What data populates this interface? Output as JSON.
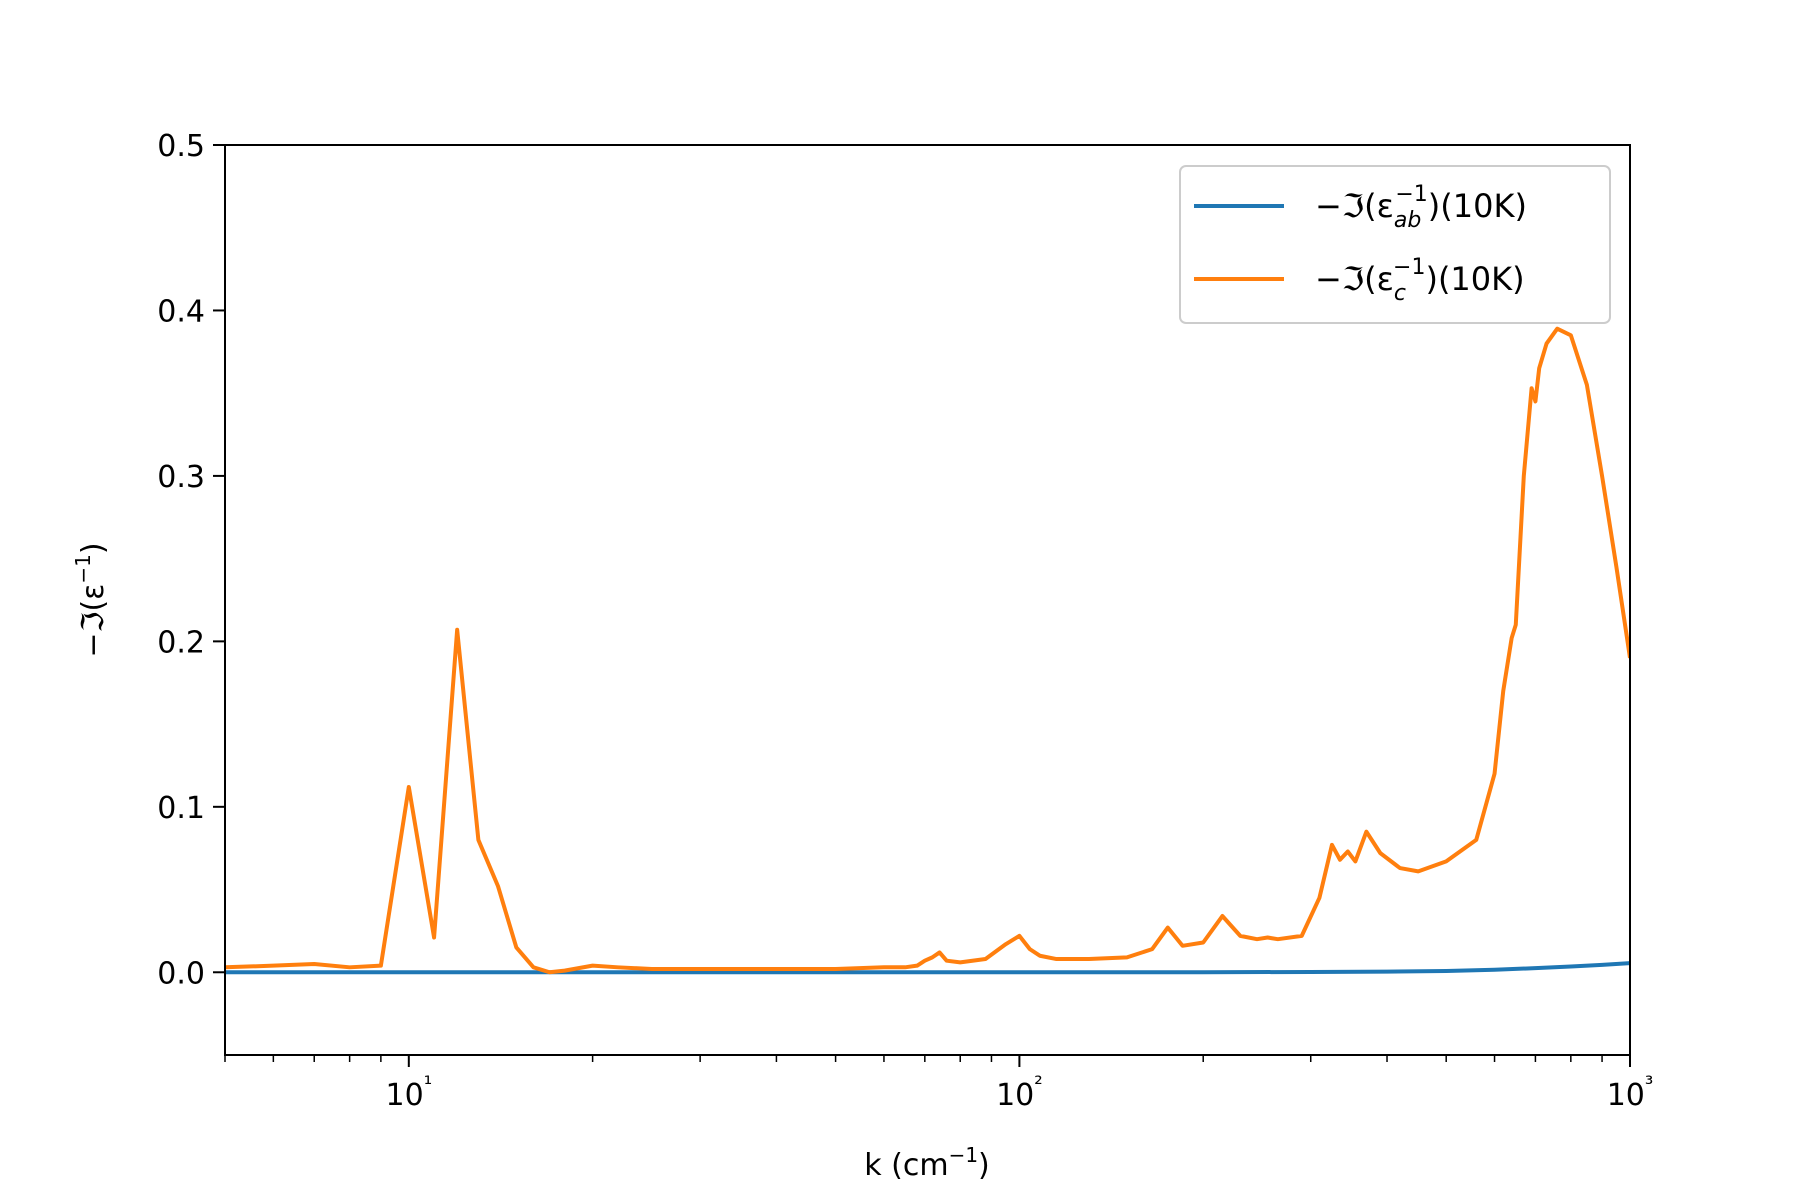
{
  "chart_data": {
    "type": "line",
    "title": "",
    "xlabel": "k (cm⁻¹)",
    "ylabel": "−ℑ(ε⁻¹)",
    "x_scale": "log",
    "xlim": [
      5,
      1000
    ],
    "ylim": [
      -0.05,
      0.5
    ],
    "x_ticks": [
      {
        "value": 10,
        "label": "10¹"
      },
      {
        "value": 100,
        "label": "10²"
      },
      {
        "value": 1000,
        "label": "10³"
      }
    ],
    "y_ticks": [
      {
        "value": 0.0,
        "label": "0.0"
      },
      {
        "value": 0.1,
        "label": "0.1"
      },
      {
        "value": 0.2,
        "label": "0.2"
      },
      {
        "value": 0.3,
        "label": "0.3"
      },
      {
        "value": 0.4,
        "label": "0.4"
      },
      {
        "value": 0.5,
        "label": "0.5"
      }
    ],
    "grid": false,
    "legend_position": "top-right",
    "series": [
      {
        "name": "−ℑ(ε_ab⁻¹)(10K)",
        "legend": {
          "prefix": "−ℑ(ε",
          "sub": "ab",
          "sup": "−1",
          "suffix": ")(10K)"
        },
        "color": "#1f77b4",
        "points": [
          [
            5,
            0.0
          ],
          [
            10,
            0.0
          ],
          [
            20,
            0.0
          ],
          [
            50,
            0.0
          ],
          [
            100,
            0.0
          ],
          [
            200,
            0.0
          ],
          [
            300,
            0.0002
          ],
          [
            400,
            0.0004
          ],
          [
            500,
            0.0008
          ],
          [
            600,
            0.0015
          ],
          [
            700,
            0.0025
          ],
          [
            800,
            0.0035
          ],
          [
            900,
            0.0045
          ],
          [
            1000,
            0.0055
          ]
        ]
      },
      {
        "name": "−ℑ(ε_c⁻¹)(10K)",
        "legend": {
          "prefix": "−ℑ(ε",
          "sub": "c",
          "sup": "−1",
          "suffix": ")(10K)"
        },
        "color": "#ff7f0e",
        "points": [
          [
            5,
            0.003
          ],
          [
            6,
            0.004
          ],
          [
            7,
            0.005
          ],
          [
            8,
            0.003
          ],
          [
            9,
            0.004
          ],
          [
            10,
            0.112
          ],
          [
            11,
            0.021
          ],
          [
            12,
            0.207
          ],
          [
            13,
            0.08
          ],
          [
            14,
            0.052
          ],
          [
            15,
            0.015
          ],
          [
            16,
            0.003
          ],
          [
            17,
            0.0
          ],
          [
            18,
            0.001
          ],
          [
            20,
            0.004
          ],
          [
            22,
            0.003
          ],
          [
            25,
            0.002
          ],
          [
            30,
            0.002
          ],
          [
            40,
            0.002
          ],
          [
            50,
            0.002
          ],
          [
            60,
            0.003
          ],
          [
            65,
            0.003
          ],
          [
            68,
            0.004
          ],
          [
            70,
            0.007
          ],
          [
            72,
            0.009
          ],
          [
            74,
            0.012
          ],
          [
            76,
            0.007
          ],
          [
            80,
            0.006
          ],
          [
            88,
            0.008
          ],
          [
            95,
            0.017
          ],
          [
            100,
            0.022
          ],
          [
            104,
            0.014
          ],
          [
            108,
            0.01
          ],
          [
            115,
            0.008
          ],
          [
            130,
            0.008
          ],
          [
            150,
            0.009
          ],
          [
            165,
            0.014
          ],
          [
            175,
            0.027
          ],
          [
            185,
            0.016
          ],
          [
            200,
            0.018
          ],
          [
            215,
            0.034
          ],
          [
            230,
            0.022
          ],
          [
            245,
            0.02
          ],
          [
            255,
            0.021
          ],
          [
            265,
            0.02
          ],
          [
            290,
            0.022
          ],
          [
            310,
            0.045
          ],
          [
            325,
            0.077
          ],
          [
            335,
            0.068
          ],
          [
            345,
            0.073
          ],
          [
            355,
            0.067
          ],
          [
            370,
            0.085
          ],
          [
            390,
            0.072
          ],
          [
            420,
            0.063
          ],
          [
            450,
            0.061
          ],
          [
            500,
            0.067
          ],
          [
            560,
            0.08
          ],
          [
            600,
            0.12
          ],
          [
            620,
            0.17
          ],
          [
            640,
            0.202
          ],
          [
            650,
            0.21
          ],
          [
            670,
            0.3
          ],
          [
            690,
            0.353
          ],
          [
            700,
            0.345
          ],
          [
            710,
            0.365
          ],
          [
            730,
            0.38
          ],
          [
            760,
            0.389
          ],
          [
            800,
            0.385
          ],
          [
            850,
            0.355
          ],
          [
            900,
            0.3
          ],
          [
            950,
            0.245
          ],
          [
            1000,
            0.19
          ]
        ]
      }
    ]
  }
}
